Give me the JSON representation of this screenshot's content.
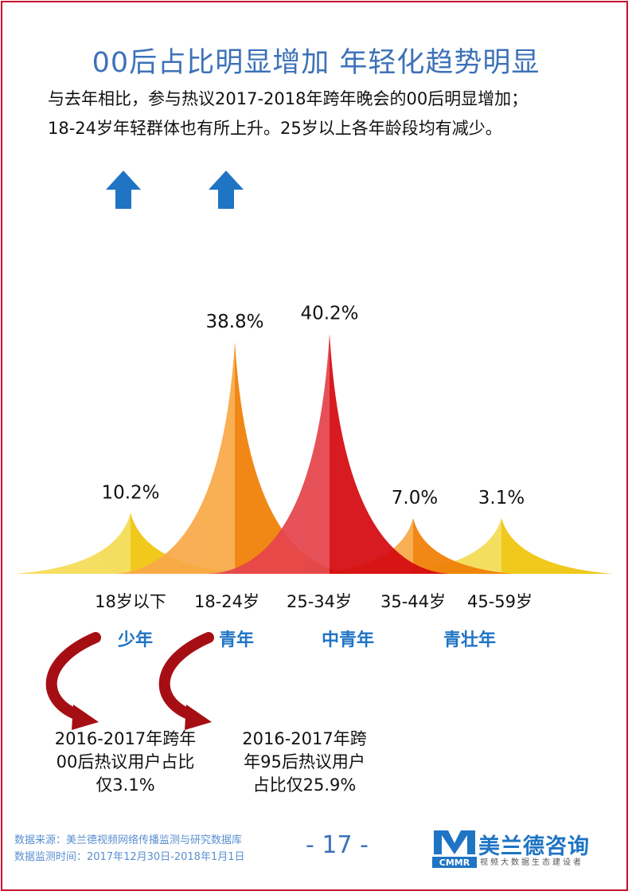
{
  "title": "00后占比明显增加  年轻化趋势明显",
  "subtitle": [
    "与去年相比，参与热议2017-2018年跨年晚会的00后明显增加；",
    "18-24岁年轻群体也有所上升。25岁以上各年龄段均有减少。"
  ],
  "chart_data": {
    "type": "area",
    "categories": [
      "18岁以下",
      "18-24岁",
      "25-34岁",
      "35-44岁",
      "45-59岁"
    ],
    "values": [
      10.2,
      38.8,
      40.2,
      7.0,
      3.1
    ],
    "value_labels": [
      "10.2%",
      "38.8%",
      "40.2%",
      "7.0%",
      "3.1%"
    ],
    "groups": [
      "少年",
      "青年",
      "中青年",
      "青壮年"
    ],
    "increased": [
      true,
      true,
      false,
      false,
      false
    ],
    "colors": [
      "#f2cf1a",
      "#f78c12",
      "#e01218",
      "#f78c12",
      "#f2cf1a"
    ]
  },
  "notes": [
    [
      "2016-2017年跨年",
      "00后热议用户占比",
      "仅3.1%"
    ],
    [
      "2016-2017年跨",
      "年95后热议用户",
      "占比仅25.9%"
    ]
  ],
  "footer": {
    "source": "数据来源：美兰德视频网络传播监测与研究数据库",
    "period": "数据监测时间：2017年12月30日-2018年1月1日",
    "page": "- 17 -"
  },
  "logo": {
    "name": "美兰德咨询",
    "abbr": "CMMR",
    "tagline": "视频大数据生态建设者"
  }
}
